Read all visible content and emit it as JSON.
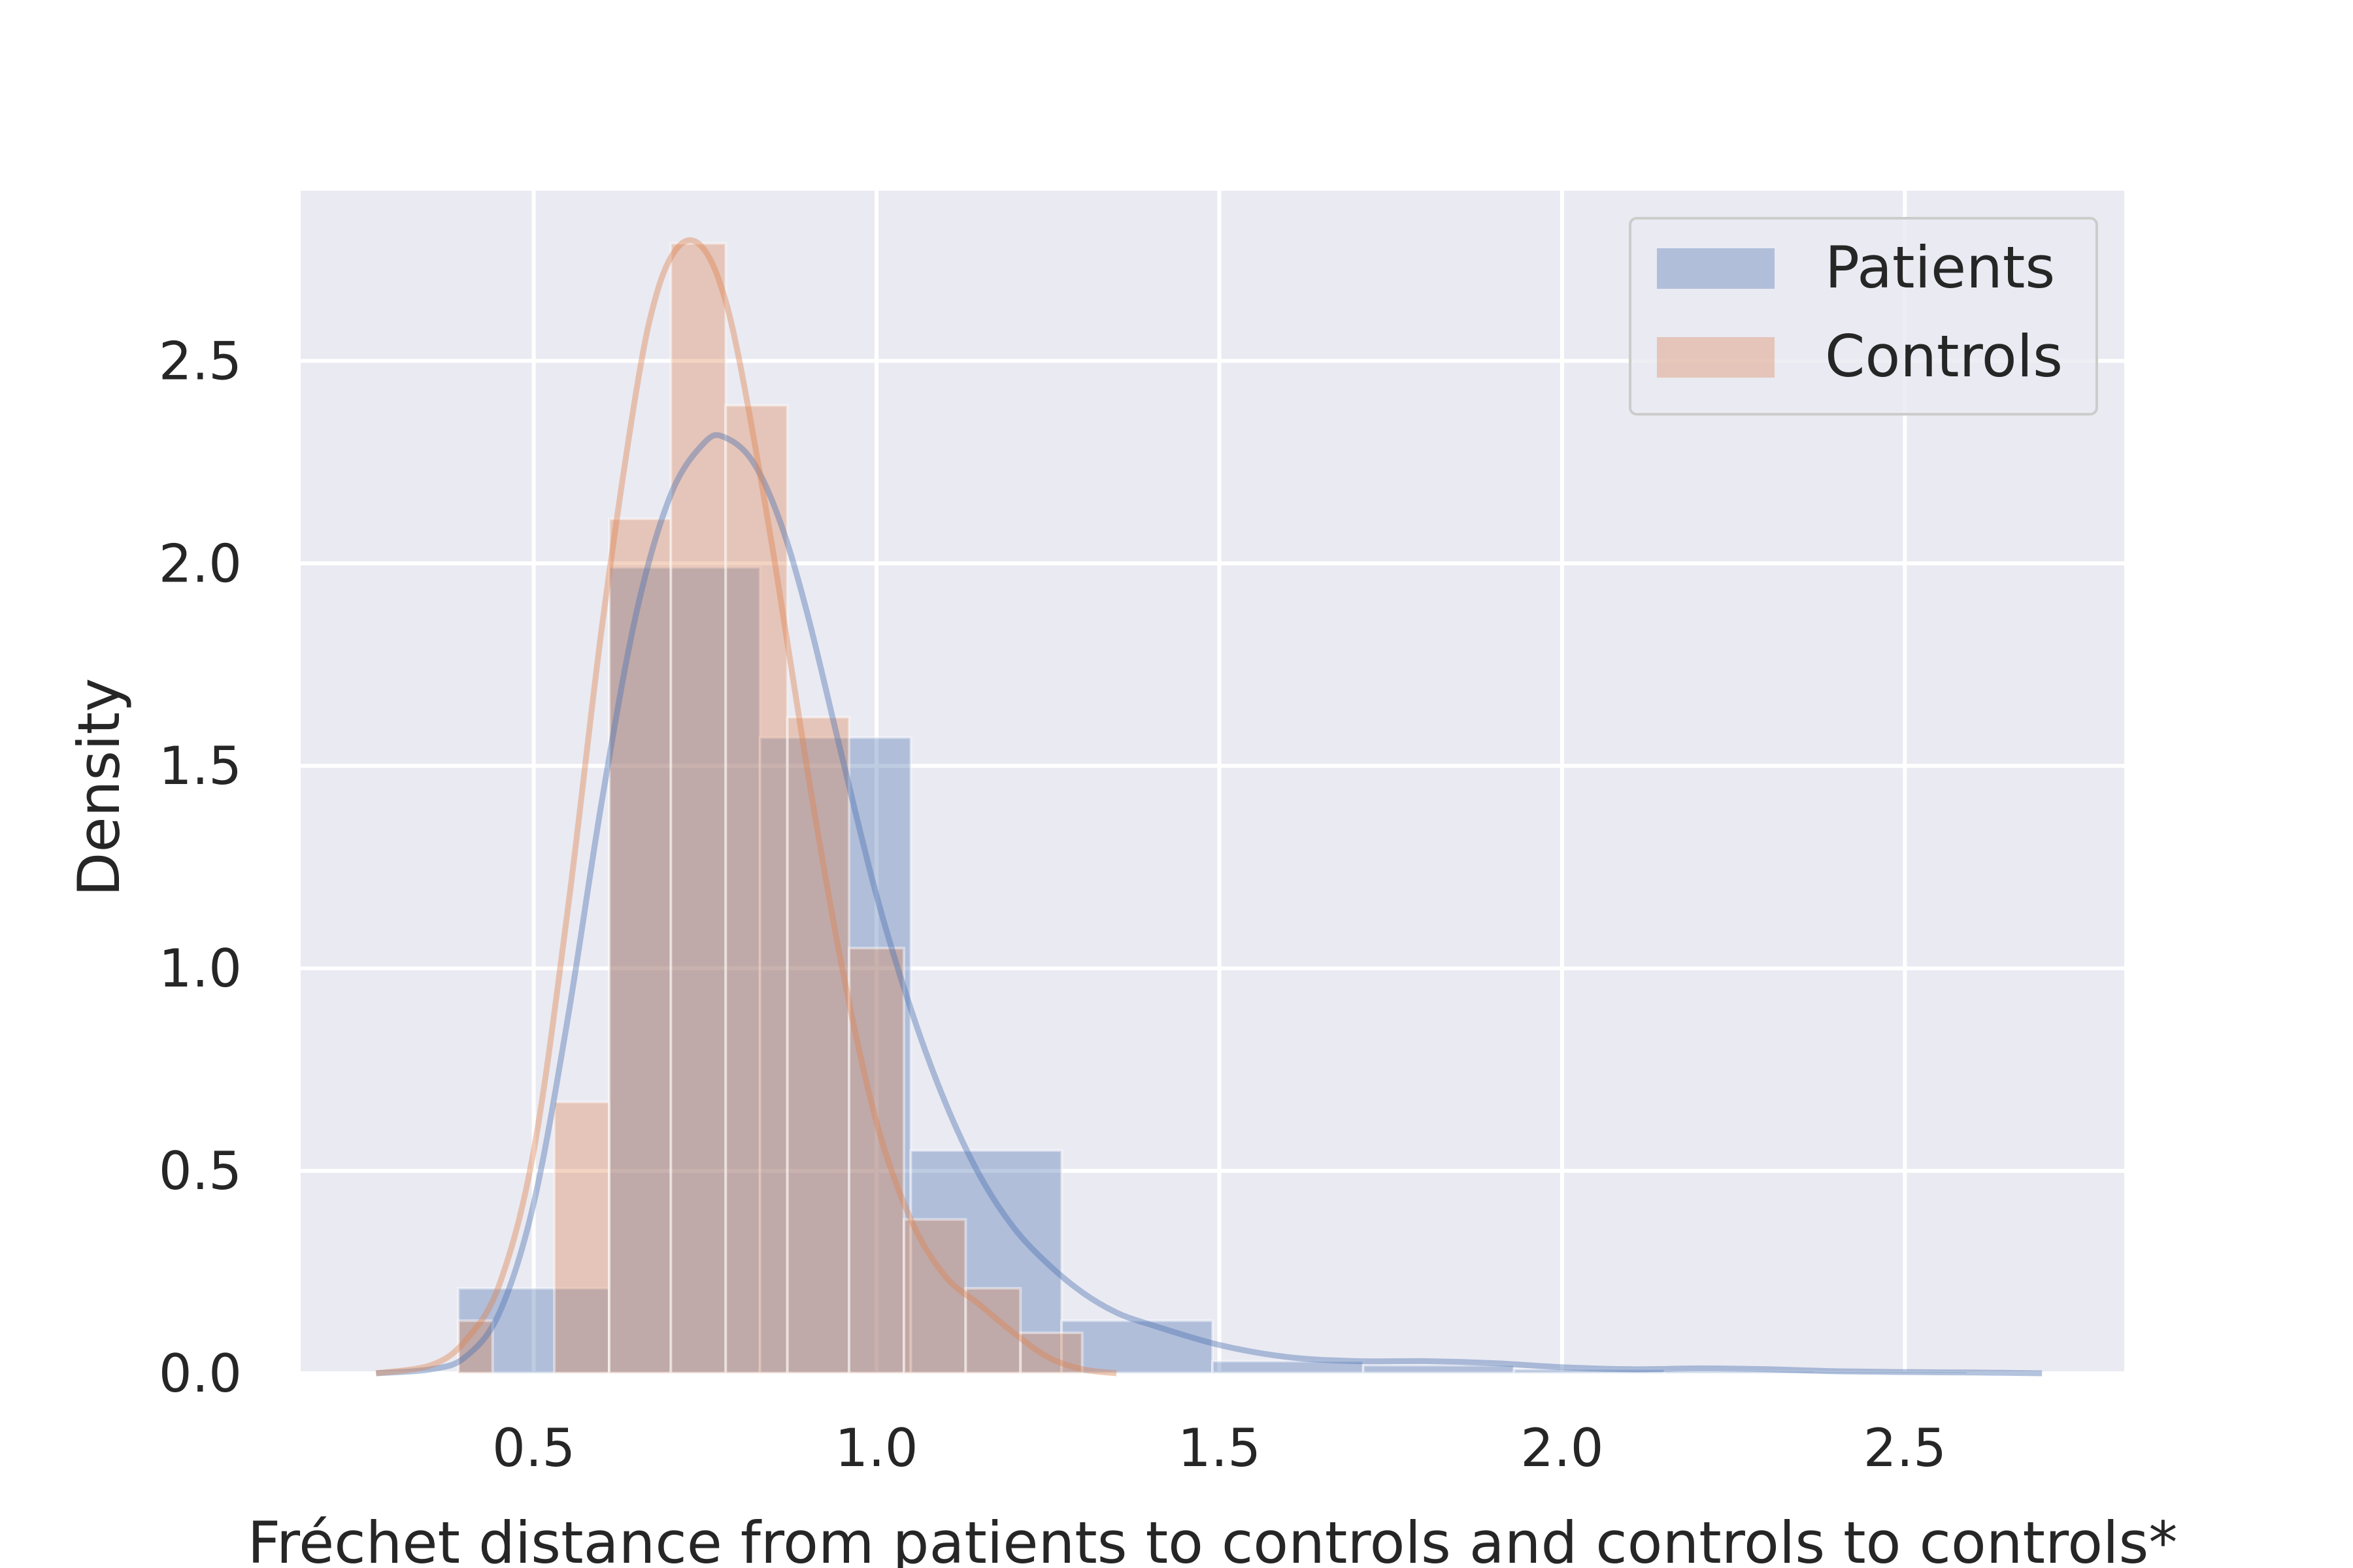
{
  "chart_data": {
    "type": "histogram",
    "xlabel": "Fréchet distance from patients to controls and controls to controls*",
    "ylabel": "Density",
    "xlim": [
      0.16,
      2.82
    ],
    "ylim": [
      0,
      2.92
    ],
    "xticks": [
      0.5,
      1.0,
      1.5,
      2.0,
      2.5
    ],
    "xtick_labels": [
      "0.5",
      "1.0",
      "1.5",
      "2.0",
      "2.5"
    ],
    "yticks": [
      0.0,
      0.5,
      1.0,
      1.5,
      2.0,
      2.5
    ],
    "ytick_labels": [
      "0.0",
      "0.5",
      "1.0",
      "1.5",
      "2.0",
      "2.5"
    ],
    "grid": true,
    "legend_position": "top-right",
    "colors": {
      "background": "#eaeaf2",
      "grid": "#ffffff",
      "patients": "#4c72b0",
      "controls": "#dd8452"
    },
    "series": [
      {
        "name": "Patients",
        "color": "#4c72b0",
        "bins": [
          {
            "x0": 0.39,
            "x1": 0.61,
            "density": 0.21
          },
          {
            "x0": 0.61,
            "x1": 0.83,
            "density": 1.99
          },
          {
            "x0": 0.83,
            "x1": 1.05,
            "density": 1.57
          },
          {
            "x0": 1.05,
            "x1": 1.27,
            "density": 0.55
          },
          {
            "x0": 1.27,
            "x1": 1.49,
            "density": 0.13
          },
          {
            "x0": 1.49,
            "x1": 1.71,
            "density": 0.03
          },
          {
            "x0": 1.71,
            "x1": 1.93,
            "density": 0.02
          },
          {
            "x0": 1.93,
            "x1": 2.15,
            "density": 0.01
          },
          {
            "x0": 2.15,
            "x1": 2.37,
            "density": 0.005
          },
          {
            "x0": 2.37,
            "x1": 2.59,
            "density": 0.003
          }
        ],
        "kde": {
          "x": [
            0.27,
            0.35,
            0.4,
            0.45,
            0.5,
            0.55,
            0.6,
            0.65,
            0.7,
            0.75,
            0.78,
            0.82,
            0.86,
            0.9,
            0.95,
            1.0,
            1.05,
            1.1,
            1.15,
            1.2,
            1.25,
            1.3,
            1.35,
            1.4,
            1.5,
            1.6,
            1.7,
            1.8,
            1.9,
            2.0,
            2.1,
            2.2,
            2.3,
            2.4,
            2.5,
            2.6,
            2.7
          ],
          "y": [
            0.0,
            0.01,
            0.04,
            0.15,
            0.42,
            0.88,
            1.42,
            1.88,
            2.17,
            2.3,
            2.31,
            2.25,
            2.1,
            1.87,
            1.52,
            1.18,
            0.9,
            0.67,
            0.49,
            0.36,
            0.27,
            0.2,
            0.15,
            0.12,
            0.07,
            0.04,
            0.03,
            0.03,
            0.025,
            0.015,
            0.01,
            0.012,
            0.01,
            0.005,
            0.003,
            0.002,
            0.0
          ]
        }
      },
      {
        "name": "Controls",
        "color": "#dd8452",
        "bins": [
          {
            "x0": 0.39,
            "x1": 0.44,
            "density": 0.13
          },
          {
            "x0": 0.44,
            "x1": 0.53,
            "density": 0.0
          },
          {
            "x0": 0.53,
            "x1": 0.61,
            "density": 0.67
          },
          {
            "x0": 0.61,
            "x1": 0.7,
            "density": 2.11
          },
          {
            "x0": 0.7,
            "x1": 0.78,
            "density": 2.79
          },
          {
            "x0": 0.78,
            "x1": 0.87,
            "density": 2.39
          },
          {
            "x0": 0.87,
            "x1": 0.96,
            "density": 1.62
          },
          {
            "x0": 0.96,
            "x1": 1.04,
            "density": 1.05
          },
          {
            "x0": 1.04,
            "x1": 1.13,
            "density": 0.38
          },
          {
            "x0": 1.13,
            "x1": 1.21,
            "density": 0.21
          },
          {
            "x0": 1.21,
            "x1": 1.3,
            "density": 0.1
          }
        ],
        "kde": {
          "x": [
            0.27,
            0.35,
            0.4,
            0.45,
            0.5,
            0.55,
            0.6,
            0.65,
            0.68,
            0.71,
            0.74,
            0.77,
            0.8,
            0.85,
            0.9,
            0.95,
            1.0,
            1.05,
            1.1,
            1.15,
            1.2,
            1.25,
            1.3,
            1.35
          ],
          "y": [
            0.0,
            0.02,
            0.08,
            0.22,
            0.55,
            1.15,
            1.85,
            2.43,
            2.67,
            2.78,
            2.79,
            2.7,
            2.5,
            2.02,
            1.48,
            1.0,
            0.62,
            0.38,
            0.24,
            0.17,
            0.1,
            0.04,
            0.01,
            0.0
          ]
        }
      }
    ]
  }
}
